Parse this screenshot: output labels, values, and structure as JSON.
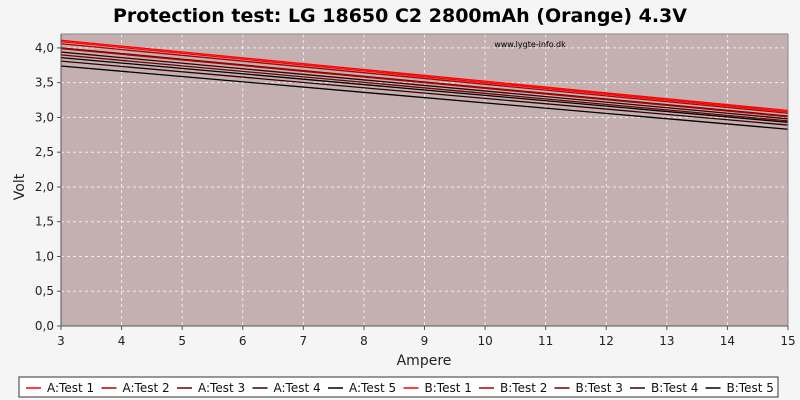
{
  "chart_data": {
    "type": "line",
    "title": "Protection test: LG 18650 C2 2800mAh (Orange) 4.3V",
    "xlabel": "Ampere",
    "ylabel": "Volt",
    "watermark": "www.lygte-info.dk",
    "xlim": [
      3,
      15
    ],
    "ylim": [
      0,
      4.2
    ],
    "x_ticks": [
      3,
      4,
      5,
      6,
      7,
      8,
      9,
      10,
      11,
      12,
      13,
      14,
      15
    ],
    "y_ticks": [
      0,
      0.5,
      1.0,
      1.5,
      2.0,
      2.5,
      3.0,
      3.5,
      4.0
    ],
    "y_tick_labels": [
      "0,0",
      "0,5",
      "1,0",
      "1,5",
      "2,0",
      "2,5",
      "3,0",
      "3,5",
      "4,0"
    ],
    "grid": true,
    "legend_position": "bottom",
    "plot_background": "#c4b0b0",
    "series": [
      {
        "name": "A:Test 1",
        "color": "#ff0000",
        "x": [
          3,
          15
        ],
        "y": [
          4.11,
          3.1
        ]
      },
      {
        "name": "A:Test 2",
        "color": "#b00000",
        "x": [
          3,
          15
        ],
        "y": [
          4.06,
          3.06
        ]
      },
      {
        "name": "A:Test 3",
        "color": "#6a0000",
        "x": [
          3,
          15
        ],
        "y": [
          4.0,
          3.02
        ]
      },
      {
        "name": "A:Test 4",
        "color": "#350000",
        "x": [
          3,
          15
        ],
        "y": [
          3.94,
          2.98
        ]
      },
      {
        "name": "A:Test 5",
        "color": "#000000",
        "x": [
          3,
          15
        ],
        "y": [
          3.86,
          2.93
        ]
      },
      {
        "name": "B:Test 1",
        "color": "#ff0000",
        "x": [
          3,
          15
        ],
        "y": [
          4.09,
          3.08
        ]
      },
      {
        "name": "B:Test 2",
        "color": "#b00000",
        "x": [
          3,
          15
        ],
        "y": [
          3.99,
          3.01
        ]
      },
      {
        "name": "B:Test 3",
        "color": "#6a0000",
        "x": [
          3,
          15
        ],
        "y": [
          3.9,
          2.95
        ]
      },
      {
        "name": "B:Test 4",
        "color": "#350000",
        "x": [
          3,
          15
        ],
        "y": [
          3.81,
          2.89
        ]
      },
      {
        "name": "B:Test 5",
        "color": "#000000",
        "x": [
          3,
          15
        ],
        "y": [
          3.74,
          2.83
        ]
      }
    ]
  }
}
